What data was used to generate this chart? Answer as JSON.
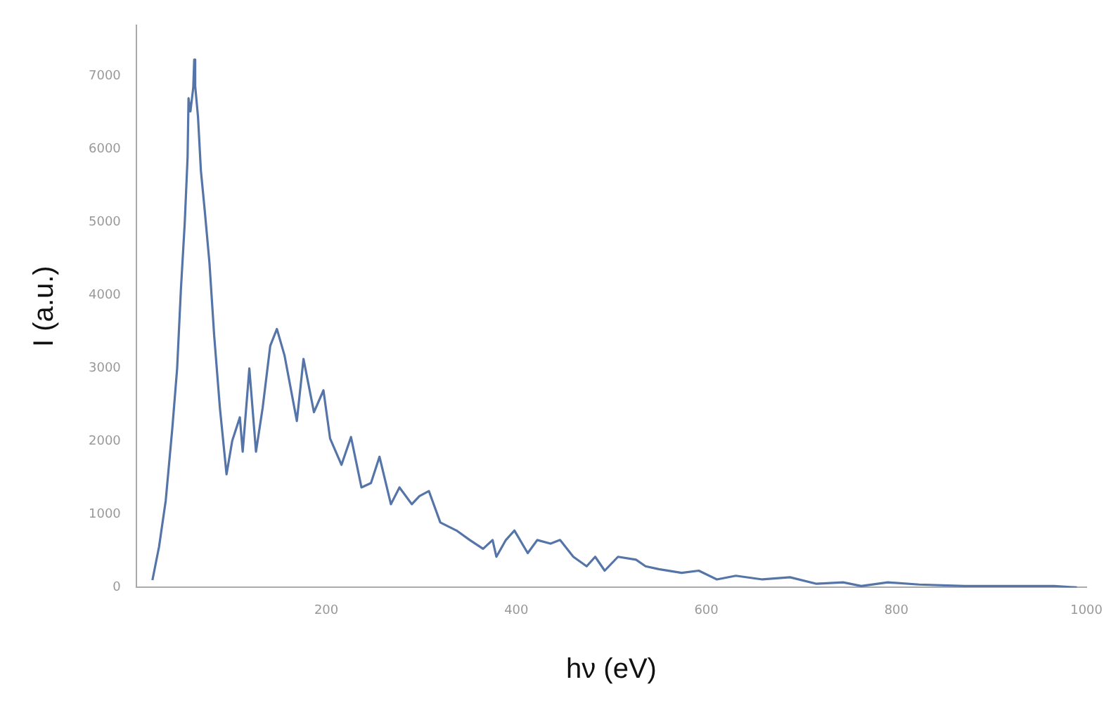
{
  "chart_data": {
    "type": "line",
    "xlabel": "hν (eV)",
    "ylabel": "I (a.u.)",
    "xlim": [
      0,
      1000
    ],
    "ylim": [
      0,
      7700
    ],
    "xticks": [
      200,
      400,
      600,
      800,
      1000
    ],
    "yticks": [
      0,
      1000,
      2000,
      3000,
      4000,
      5000,
      6000,
      7000
    ],
    "grid": false,
    "legend": false,
    "marker": "none",
    "line_style": "solid",
    "series": [
      {
        "color": "#5574a8",
        "x": [
          17,
          24,
          31,
          38,
          43,
          47,
          51,
          54,
          55,
          57,
          60,
          61,
          62,
          65,
          68,
          72,
          77,
          82,
          88,
          95,
          101,
          109,
          112,
          119,
          126,
          133,
          141,
          148,
          156,
          169,
          176,
          187,
          197,
          204,
          216,
          226,
          237,
          247,
          256,
          268,
          277,
          290,
          298,
          308,
          320,
          337,
          351,
          365,
          375,
          379,
          389,
          398,
          412,
          422,
          436,
          446,
          460,
          474,
          483,
          493,
          507,
          526,
          536,
          550,
          574,
          592,
          611,
          631,
          659,
          688,
          716,
          744,
          763,
          791,
          824,
          872,
          919,
          966,
          990
        ],
        "values": [
          100,
          560,
          1190,
          2190,
          3000,
          4090,
          4990,
          5890,
          6700,
          6520,
          6850,
          7230,
          6870,
          6440,
          5710,
          5170,
          4450,
          3450,
          2460,
          1550,
          2010,
          2330,
          1860,
          3000,
          1860,
          2460,
          3310,
          3540,
          3180,
          2280,
          3130,
          2400,
          2700,
          2040,
          1680,
          2060,
          1370,
          1430,
          1790,
          1140,
          1370,
          1140,
          1250,
          1320,
          890,
          780,
          650,
          530,
          650,
          420,
          650,
          780,
          470,
          650,
          600,
          650,
          420,
          290,
          420,
          230,
          420,
          380,
          290,
          250,
          200,
          230,
          110,
          160,
          110,
          140,
          50,
          70,
          20,
          70,
          40,
          20,
          20,
          20,
          0
        ]
      }
    ]
  }
}
